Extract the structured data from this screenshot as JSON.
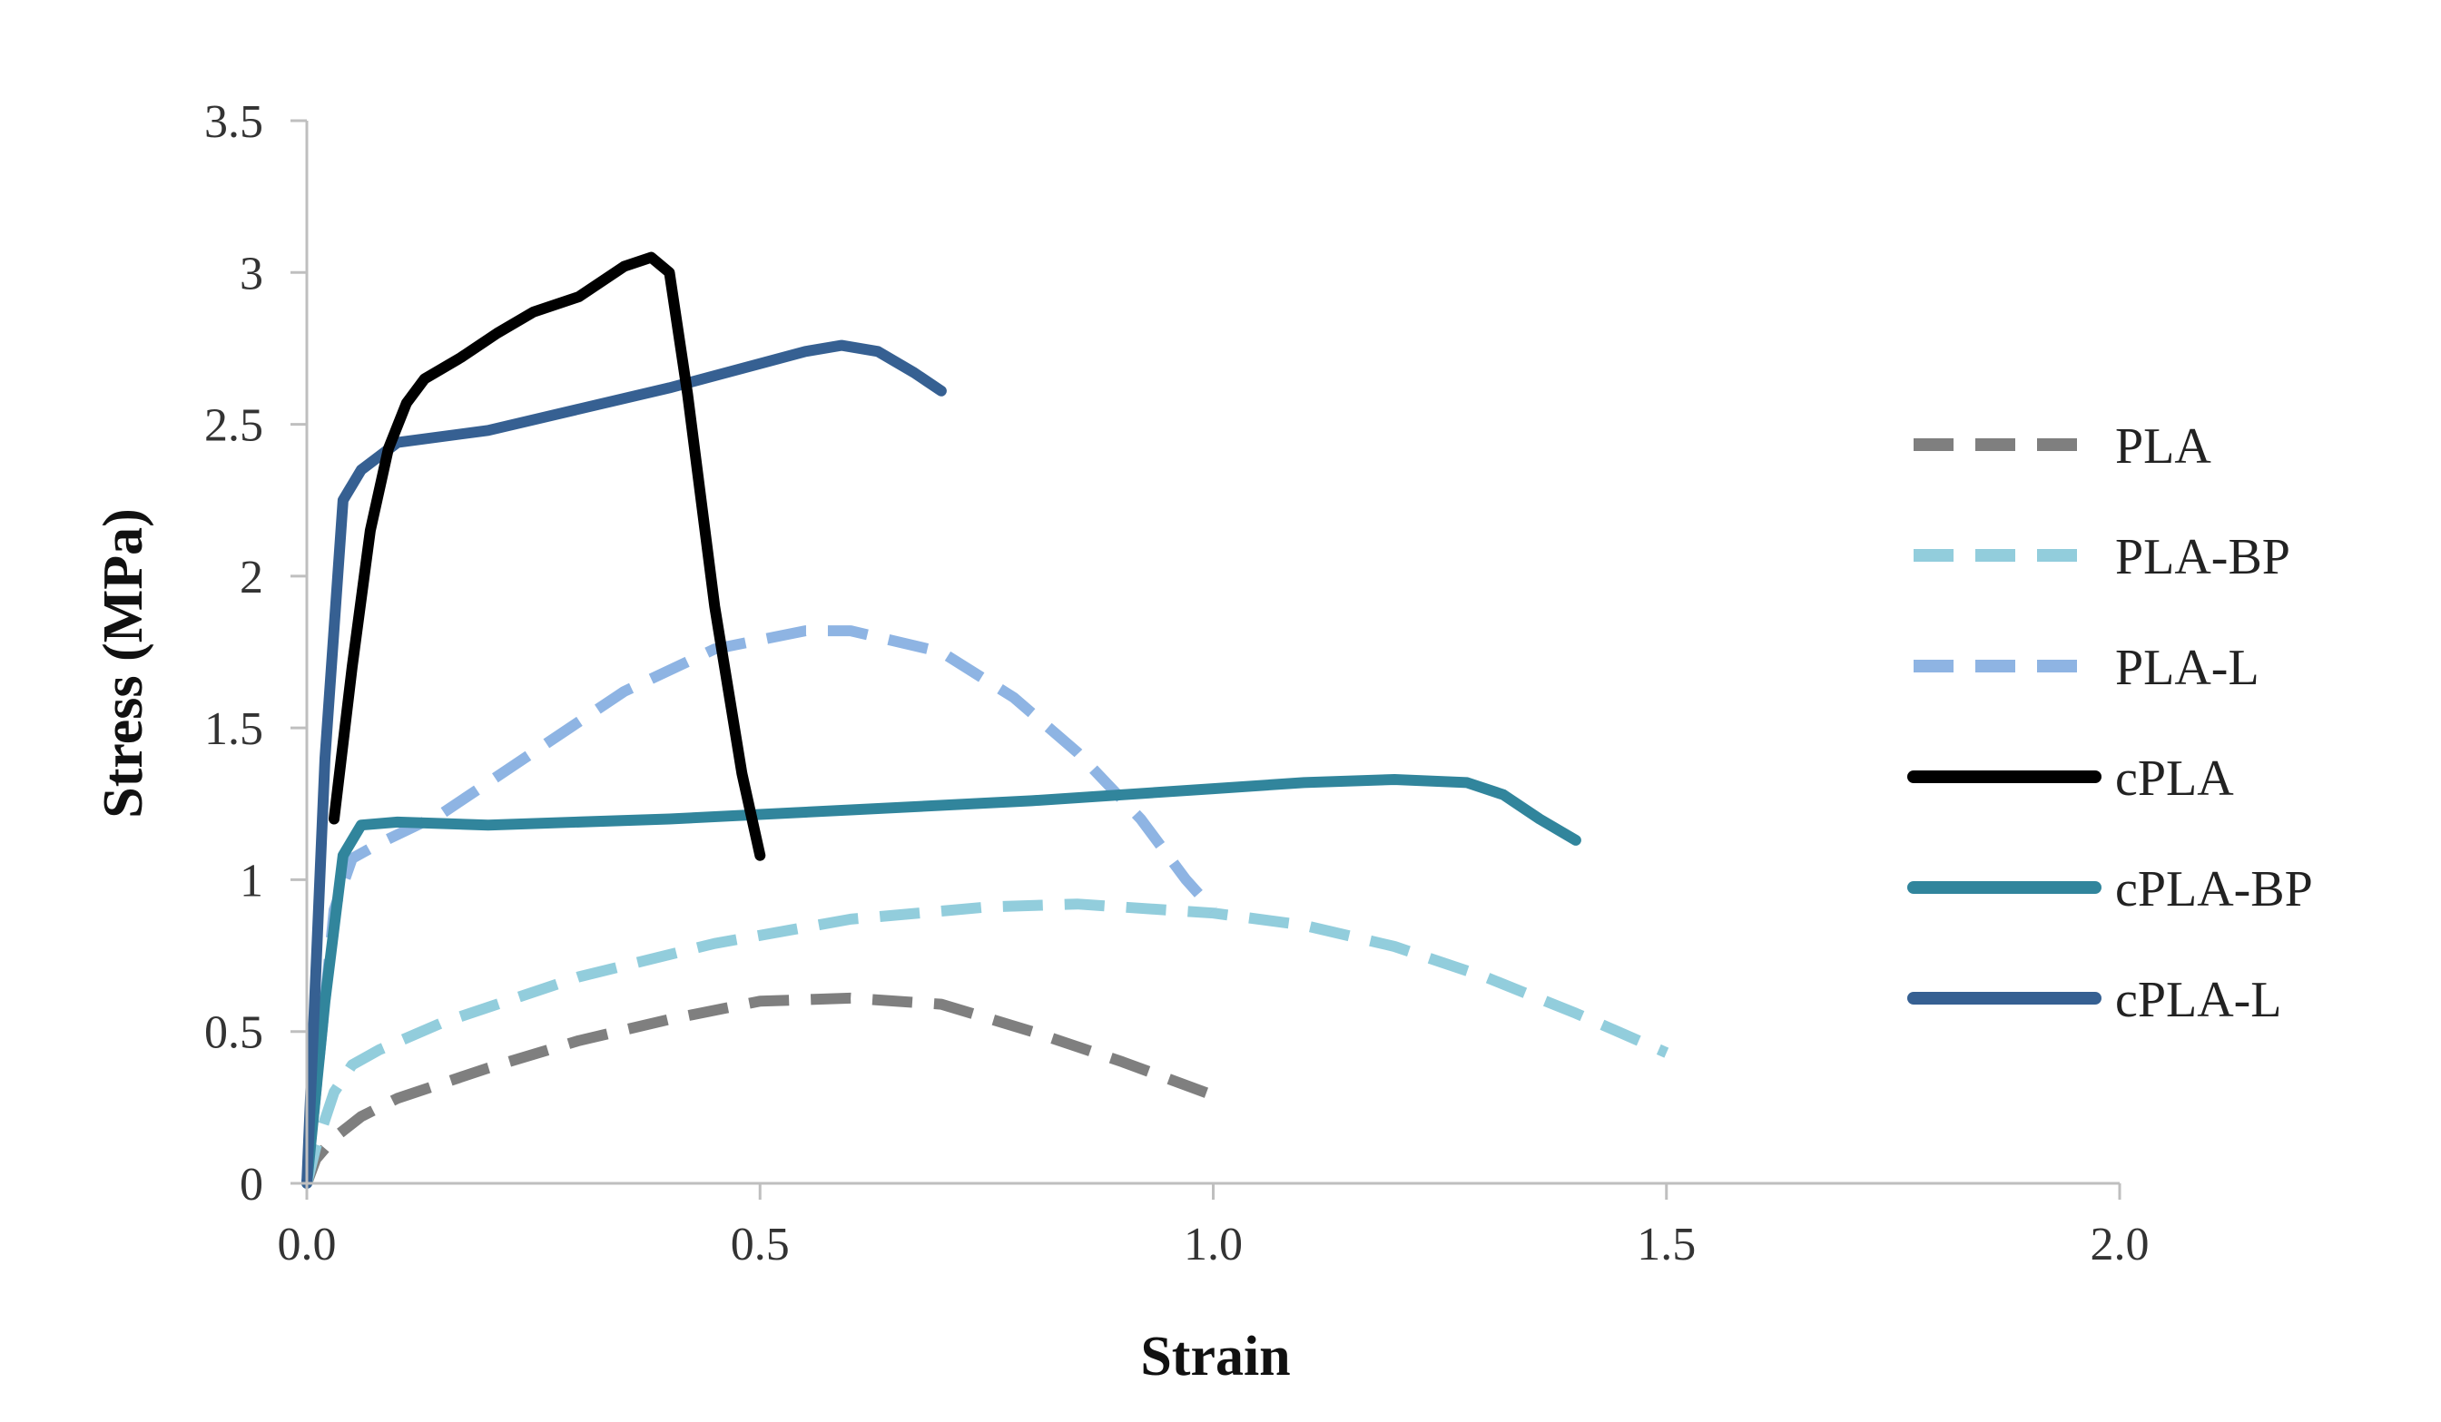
{
  "chart_data": {
    "type": "line",
    "title": "",
    "xlabel": "Strain",
    "ylabel": "Stress (MPa)",
    "xlim": [
      0,
      2
    ],
    "ylim": [
      0,
      3.5
    ],
    "x_ticks": [
      "0.0",
      "0.5",
      "1.0",
      "1.5",
      "2.0"
    ],
    "y_ticks": [
      "0",
      "0.5",
      "1",
      "1.5",
      "2",
      "2.5",
      "3",
      "3.5"
    ],
    "grid": false,
    "legend_position": "right",
    "series": [
      {
        "name": "PLA",
        "color": "#7f7f7f",
        "dash": true,
        "points": [
          [
            0,
            0
          ],
          [
            0.01,
            0.08
          ],
          [
            0.03,
            0.15
          ],
          [
            0.06,
            0.22
          ],
          [
            0.1,
            0.28
          ],
          [
            0.2,
            0.38
          ],
          [
            0.3,
            0.47
          ],
          [
            0.4,
            0.54
          ],
          [
            0.5,
            0.6
          ],
          [
            0.6,
            0.61
          ],
          [
            0.7,
            0.59
          ],
          [
            0.8,
            0.5
          ],
          [
            0.9,
            0.4
          ],
          [
            1.0,
            0.29
          ]
        ]
      },
      {
        "name": "PLA-BP",
        "color": "#92cddc",
        "dash": true,
        "points": [
          [
            0,
            0
          ],
          [
            0.01,
            0.12
          ],
          [
            0.03,
            0.3
          ],
          [
            0.05,
            0.39
          ],
          [
            0.08,
            0.44
          ],
          [
            0.15,
            0.53
          ],
          [
            0.3,
            0.68
          ],
          [
            0.45,
            0.79
          ],
          [
            0.6,
            0.87
          ],
          [
            0.75,
            0.91
          ],
          [
            0.85,
            0.92
          ],
          [
            1.0,
            0.89
          ],
          [
            1.1,
            0.85
          ],
          [
            1.2,
            0.78
          ],
          [
            1.3,
            0.68
          ],
          [
            1.4,
            0.56
          ],
          [
            1.5,
            0.43
          ]
        ]
      },
      {
        "name": "PLA-L",
        "color": "#8eb4e3",
        "dash": true,
        "points": [
          [
            0,
            0
          ],
          [
            0.01,
            0.3
          ],
          [
            0.03,
            0.9
          ],
          [
            0.05,
            1.07
          ],
          [
            0.08,
            1.12
          ],
          [
            0.15,
            1.22
          ],
          [
            0.25,
            1.42
          ],
          [
            0.35,
            1.62
          ],
          [
            0.45,
            1.76
          ],
          [
            0.55,
            1.82
          ],
          [
            0.6,
            1.82
          ],
          [
            0.7,
            1.75
          ],
          [
            0.78,
            1.6
          ],
          [
            0.85,
            1.42
          ],
          [
            0.92,
            1.2
          ],
          [
            0.97,
            1.0
          ],
          [
            1.0,
            0.9
          ]
        ]
      },
      {
        "name": "cPLA",
        "color": "#000000",
        "dash": false,
        "points": [
          [
            0.03,
            1.2
          ],
          [
            0.05,
            1.7
          ],
          [
            0.07,
            2.15
          ],
          [
            0.09,
            2.42
          ],
          [
            0.11,
            2.57
          ],
          [
            0.13,
            2.65
          ],
          [
            0.17,
            2.72
          ],
          [
            0.21,
            2.8
          ],
          [
            0.25,
            2.87
          ],
          [
            0.3,
            2.92
          ],
          [
            0.35,
            3.02
          ],
          [
            0.38,
            3.05
          ],
          [
            0.4,
            3.0
          ],
          [
            0.42,
            2.6
          ],
          [
            0.45,
            1.9
          ],
          [
            0.48,
            1.35
          ],
          [
            0.5,
            1.08
          ]
        ]
      },
      {
        "name": "cPLA-BP",
        "color": "#31859c",
        "dash": false,
        "points": [
          [
            0,
            0
          ],
          [
            0.02,
            0.6
          ],
          [
            0.04,
            1.08
          ],
          [
            0.06,
            1.18
          ],
          [
            0.1,
            1.19
          ],
          [
            0.2,
            1.18
          ],
          [
            0.4,
            1.2
          ],
          [
            0.6,
            1.23
          ],
          [
            0.8,
            1.26
          ],
          [
            1.0,
            1.3
          ],
          [
            1.1,
            1.32
          ],
          [
            1.2,
            1.33
          ],
          [
            1.28,
            1.32
          ],
          [
            1.32,
            1.28
          ],
          [
            1.36,
            1.2
          ],
          [
            1.4,
            1.13
          ]
        ]
      },
      {
        "name": "cPLA-L",
        "color": "#366092",
        "dash": false,
        "points": [
          [
            0,
            0
          ],
          [
            0.02,
            1.4
          ],
          [
            0.04,
            2.25
          ],
          [
            0.06,
            2.35
          ],
          [
            0.1,
            2.44
          ],
          [
            0.2,
            2.48
          ],
          [
            0.3,
            2.55
          ],
          [
            0.4,
            2.62
          ],
          [
            0.5,
            2.7
          ],
          [
            0.55,
            2.74
          ],
          [
            0.59,
            2.76
          ],
          [
            0.63,
            2.74
          ],
          [
            0.67,
            2.67
          ],
          [
            0.7,
            2.61
          ]
        ]
      }
    ]
  }
}
